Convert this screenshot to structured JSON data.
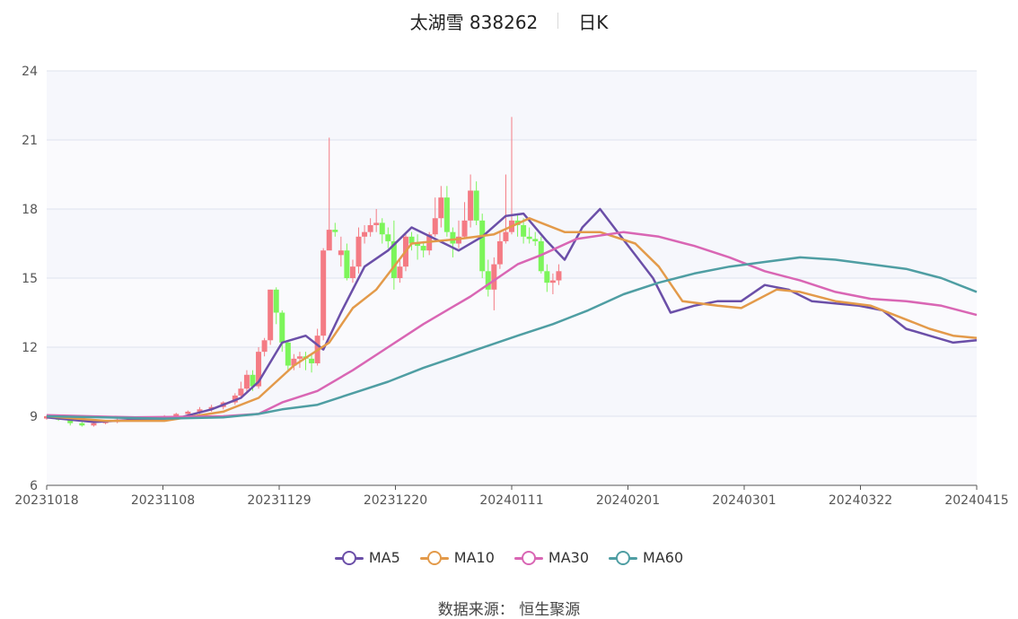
{
  "header": {
    "stock_name": "太湖雪 838262",
    "chart_kind": "日K"
  },
  "source_label": "数据来源： 恒生聚源",
  "colors": {
    "up": "#f47b84",
    "down": "#7cf55a",
    "ma5": "#6b4fa8",
    "ma10": "#e39a4a",
    "ma30": "#d966b4",
    "ma60": "#4f9ea3"
  },
  "chart_data": {
    "type": "candlestick",
    "title": "太湖雪 838262",
    "subtitle": "日K",
    "y_ticks": [
      "6",
      "9",
      "12",
      "15",
      "18",
      "21",
      "24"
    ],
    "x_ticks": [
      "20231018",
      "20231108",
      "20231129",
      "20231220",
      "20240111",
      "20240201",
      "20240301",
      "20240322",
      "20240415"
    ],
    "ylim": [
      6,
      24
    ],
    "legend": [
      "MA5",
      "MA10",
      "MA30",
      "MA60"
    ],
    "legend_position": "bottom",
    "grid": true,
    "series": [
      {
        "name": "MA5",
        "points": [
          [
            0,
            8.95
          ],
          [
            8,
            8.75
          ],
          [
            15,
            8.85
          ],
          [
            22,
            8.9
          ],
          [
            28,
            9.3
          ],
          [
            33,
            9.8
          ],
          [
            36,
            10.5
          ],
          [
            40,
            12.2
          ],
          [
            44,
            12.5
          ],
          [
            47,
            11.9
          ],
          [
            50,
            13.5
          ],
          [
            54,
            15.5
          ],
          [
            58,
            16.2
          ],
          [
            62,
            17.2
          ],
          [
            66,
            16.7
          ],
          [
            70,
            16.2
          ],
          [
            74,
            16.8
          ],
          [
            78,
            17.7
          ],
          [
            81,
            17.8
          ],
          [
            85,
            16.6
          ],
          [
            88,
            15.8
          ],
          [
            91,
            17.2
          ],
          [
            94,
            18.0
          ],
          [
            97,
            17.0
          ],
          [
            100,
            16.0
          ],
          [
            103,
            15.0
          ],
          [
            106,
            13.5
          ],
          [
            110,
            13.8
          ],
          [
            114,
            14.0
          ],
          [
            118,
            14.0
          ],
          [
            122,
            14.7
          ],
          [
            126,
            14.5
          ],
          [
            130,
            14.0
          ],
          [
            134,
            13.9
          ],
          [
            138,
            13.8
          ],
          [
            142,
            13.6
          ],
          [
            146,
            12.8
          ],
          [
            150,
            12.5
          ],
          [
            154,
            12.2
          ],
          [
            158,
            12.3
          ]
        ]
      },
      {
        "name": "MA10",
        "points": [
          [
            0,
            9.0
          ],
          [
            10,
            8.8
          ],
          [
            20,
            8.8
          ],
          [
            30,
            9.2
          ],
          [
            36,
            9.8
          ],
          [
            42,
            11.2
          ],
          [
            48,
            12.2
          ],
          [
            52,
            13.7
          ],
          [
            56,
            14.5
          ],
          [
            62,
            16.5
          ],
          [
            66,
            16.6
          ],
          [
            70,
            16.7
          ],
          [
            76,
            16.9
          ],
          [
            82,
            17.6
          ],
          [
            88,
            17.0
          ],
          [
            94,
            17.0
          ],
          [
            100,
            16.5
          ],
          [
            104,
            15.5
          ],
          [
            108,
            14.0
          ],
          [
            114,
            13.8
          ],
          [
            118,
            13.7
          ],
          [
            124,
            14.5
          ],
          [
            128,
            14.4
          ],
          [
            134,
            14.0
          ],
          [
            140,
            13.8
          ],
          [
            146,
            13.2
          ],
          [
            150,
            12.8
          ],
          [
            154,
            12.5
          ],
          [
            158,
            12.4
          ]
        ]
      },
      {
        "name": "MA30",
        "points": [
          [
            0,
            9.05
          ],
          [
            15,
            8.95
          ],
          [
            30,
            9.0
          ],
          [
            36,
            9.1
          ],
          [
            40,
            9.6
          ],
          [
            46,
            10.1
          ],
          [
            52,
            11.0
          ],
          [
            58,
            12.0
          ],
          [
            64,
            13.0
          ],
          [
            72,
            14.2
          ],
          [
            80,
            15.6
          ],
          [
            84,
            16.0
          ],
          [
            90,
            16.7
          ],
          [
            98,
            17.0
          ],
          [
            104,
            16.8
          ],
          [
            110,
            16.4
          ],
          [
            116,
            15.9
          ],
          [
            122,
            15.3
          ],
          [
            128,
            14.9
          ],
          [
            134,
            14.4
          ],
          [
            140,
            14.1
          ],
          [
            146,
            14.0
          ],
          [
            152,
            13.8
          ],
          [
            158,
            13.4
          ]
        ]
      },
      {
        "name": "MA60",
        "points": [
          [
            0,
            9.0
          ],
          [
            20,
            8.9
          ],
          [
            30,
            8.95
          ],
          [
            36,
            9.1
          ],
          [
            40,
            9.3
          ],
          [
            46,
            9.5
          ],
          [
            52,
            10.0
          ],
          [
            58,
            10.5
          ],
          [
            64,
            11.1
          ],
          [
            72,
            11.8
          ],
          [
            80,
            12.5
          ],
          [
            86,
            13.0
          ],
          [
            92,
            13.6
          ],
          [
            98,
            14.3
          ],
          [
            104,
            14.8
          ],
          [
            110,
            15.2
          ],
          [
            116,
            15.5
          ],
          [
            122,
            15.7
          ],
          [
            128,
            15.9
          ],
          [
            134,
            15.8
          ],
          [
            140,
            15.6
          ],
          [
            146,
            15.4
          ],
          [
            152,
            15.0
          ],
          [
            158,
            14.4
          ]
        ]
      }
    ],
    "candles": [
      [
        0,
        8.9,
        9.0,
        9.05,
        8.85
      ],
      [
        2,
        9.0,
        8.85,
        9.05,
        8.8
      ],
      [
        4,
        8.9,
        8.7,
        8.95,
        8.6
      ],
      [
        6,
        8.7,
        8.6,
        8.75,
        8.55
      ],
      [
        8,
        8.6,
        8.7,
        8.8,
        8.55
      ],
      [
        10,
        8.7,
        8.75,
        8.8,
        8.65
      ],
      [
        12,
        8.75,
        8.85,
        8.9,
        8.7
      ],
      [
        14,
        8.85,
        8.9,
        8.95,
        8.8
      ],
      [
        16,
        8.9,
        8.85,
        8.95,
        8.8
      ],
      [
        18,
        8.85,
        8.95,
        9.0,
        8.8
      ],
      [
        20,
        8.95,
        9.0,
        9.05,
        8.9
      ],
      [
        22,
        9.0,
        9.1,
        9.15,
        8.95
      ],
      [
        24,
        9.1,
        9.2,
        9.25,
        9.0
      ],
      [
        26,
        9.2,
        9.3,
        9.4,
        9.1
      ],
      [
        28,
        9.3,
        9.4,
        9.5,
        9.2
      ],
      [
        30,
        9.4,
        9.6,
        9.65,
        9.3
      ],
      [
        32,
        9.6,
        9.9,
        10.0,
        9.5
      ],
      [
        33,
        9.9,
        10.2,
        10.5,
        9.8
      ],
      [
        34,
        10.2,
        10.8,
        11.0,
        10.0
      ],
      [
        35,
        10.8,
        10.3,
        11.0,
        10.1
      ],
      [
        36,
        10.3,
        11.8,
        12.0,
        10.2
      ],
      [
        37,
        11.8,
        12.3,
        12.4,
        11.6
      ],
      [
        38,
        12.3,
        14.5,
        14.5,
        12.1
      ],
      [
        39,
        14.5,
        13.5,
        14.6,
        13.0
      ],
      [
        40,
        13.5,
        12.2,
        13.6,
        11.8
      ],
      [
        41,
        12.2,
        11.2,
        12.3,
        11.0
      ],
      [
        42,
        11.2,
        11.5,
        11.7,
        11.0
      ],
      [
        43,
        11.5,
        11.6,
        11.8,
        11.1
      ],
      [
        44,
        11.6,
        11.5,
        11.8,
        11.0
      ],
      [
        45,
        11.5,
        11.3,
        11.7,
        10.9
      ],
      [
        46,
        11.3,
        12.5,
        12.8,
        11.2
      ],
      [
        47,
        12.5,
        16.2,
        16.3,
        12.3
      ],
      [
        48,
        16.2,
        17.1,
        21.1,
        16.9
      ],
      [
        49,
        17.1,
        17.0,
        17.4,
        16.8
      ],
      [
        50,
        16.0,
        16.2,
        16.8,
        15.5
      ],
      [
        51,
        16.2,
        15.0,
        16.5,
        14.9
      ],
      [
        52,
        15.0,
        15.5,
        15.8,
        14.8
      ],
      [
        53,
        15.5,
        16.8,
        17.2,
        15.2
      ],
      [
        54,
        16.8,
        17.0,
        17.3,
        16.5
      ],
      [
        55,
        17.0,
        17.3,
        17.6,
        16.8
      ],
      [
        56,
        17.3,
        17.4,
        18.0,
        17.0
      ],
      [
        57,
        17.4,
        16.9,
        17.6,
        16.5
      ],
      [
        58,
        16.9,
        16.6,
        17.2,
        16.3
      ],
      [
        59,
        16.6,
        15.0,
        17.5,
        14.5
      ],
      [
        60,
        15.0,
        15.5,
        15.8,
        14.8
      ],
      [
        61,
        15.5,
        16.8,
        17.0,
        15.3
      ],
      [
        62,
        16.8,
        16.5,
        17.0,
        16.2
      ],
      [
        63,
        16.5,
        16.4,
        16.9,
        15.8
      ],
      [
        64,
        16.4,
        16.2,
        16.6,
        15.9
      ],
      [
        65,
        16.2,
        16.9,
        17.0,
        16.0
      ],
      [
        66,
        16.9,
        17.6,
        18.5,
        16.8
      ],
      [
        67,
        17.6,
        18.5,
        19.0,
        17.2
      ],
      [
        68,
        18.5,
        17.0,
        19.0,
        16.8
      ],
      [
        69,
        17.0,
        16.5,
        17.2,
        15.9
      ],
      [
        70,
        16.5,
        16.8,
        17.5,
        16.3
      ],
      [
        71,
        16.8,
        17.5,
        18.3,
        16.7
      ],
      [
        72,
        17.5,
        18.8,
        19.5,
        17.2
      ],
      [
        73,
        18.8,
        17.5,
        19.2,
        17.3
      ],
      [
        74,
        17.5,
        15.3,
        17.8,
        15.0
      ],
      [
        75,
        15.3,
        14.5,
        15.8,
        14.2
      ],
      [
        76,
        14.5,
        15.6,
        15.9,
        13.6
      ],
      [
        77,
        15.6,
        16.6,
        17.0,
        15.4
      ],
      [
        78,
        16.6,
        17.0,
        19.5,
        16.5
      ],
      [
        79,
        17.0,
        17.5,
        22.0,
        16.9
      ],
      [
        80,
        17.5,
        17.3,
        17.8,
        16.8
      ],
      [
        81,
        17.3,
        16.8,
        17.6,
        16.5
      ],
      [
        82,
        16.8,
        16.7,
        17.2,
        16.5
      ],
      [
        83,
        16.7,
        16.6,
        17.0,
        16.4
      ],
      [
        84,
        16.6,
        15.3,
        16.8,
        15.2
      ],
      [
        85,
        15.3,
        14.8,
        15.6,
        14.4
      ],
      [
        86,
        14.8,
        14.9,
        15.2,
        14.3
      ],
      [
        87,
        14.9,
        15.3,
        15.6,
        14.7
      ]
    ]
  }
}
